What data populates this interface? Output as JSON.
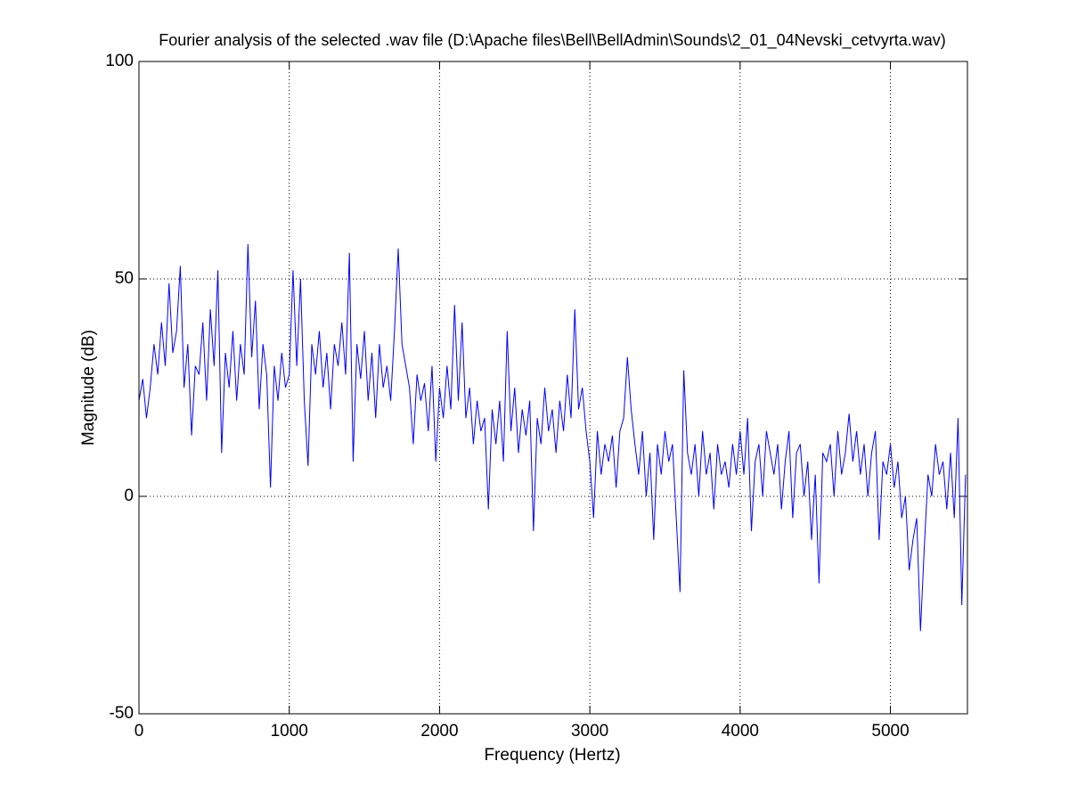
{
  "chart_data": {
    "type": "line",
    "title": "Fourier analysis of the selected .wav file (D:\\Apache files\\Bell\\BellAdmin\\Sounds\\2_01_04Nevski_cetvyrta.wav)",
    "xlabel": "Frequency (Hertz)",
    "ylabel": "Magnitude (dB)",
    "color": "#0000ff",
    "grid": true,
    "xlim": [
      0,
      5512.5
    ],
    "ylim": [
      -50,
      100
    ],
    "xticks": [
      0,
      1000,
      2000,
      3000,
      4000,
      5000
    ],
    "yticks": [
      -50,
      0,
      50,
      100
    ],
    "x": [
      0,
      25,
      50,
      75,
      100,
      125,
      150,
      175,
      200,
      225,
      250,
      275,
      300,
      325,
      350,
      375,
      400,
      425,
      450,
      475,
      500,
      525,
      550,
      575,
      600,
      625,
      650,
      675,
      700,
      725,
      750,
      775,
      800,
      825,
      850,
      875,
      900,
      925,
      950,
      975,
      1000,
      1025,
      1050,
      1075,
      1100,
      1125,
      1150,
      1175,
      1200,
      1225,
      1250,
      1275,
      1300,
      1325,
      1350,
      1375,
      1400,
      1425,
      1450,
      1475,
      1500,
      1525,
      1550,
      1575,
      1600,
      1625,
      1650,
      1675,
      1700,
      1725,
      1750,
      1775,
      1800,
      1825,
      1850,
      1875,
      1900,
      1925,
      1950,
      1975,
      2000,
      2025,
      2050,
      2075,
      2100,
      2125,
      2150,
      2175,
      2200,
      2225,
      2250,
      2275,
      2300,
      2325,
      2350,
      2375,
      2400,
      2425,
      2450,
      2475,
      2500,
      2525,
      2550,
      2575,
      2600,
      2625,
      2650,
      2675,
      2700,
      2725,
      2750,
      2775,
      2800,
      2825,
      2850,
      2875,
      2900,
      2925,
      2950,
      2975,
      3000,
      3025,
      3050,
      3075,
      3100,
      3125,
      3150,
      3175,
      3200,
      3225,
      3250,
      3275,
      3300,
      3325,
      3350,
      3375,
      3400,
      3425,
      3450,
      3475,
      3500,
      3525,
      3550,
      3575,
      3600,
      3625,
      3650,
      3675,
      3700,
      3725,
      3750,
      3775,
      3800,
      3825,
      3850,
      3875,
      3900,
      3925,
      3950,
      3975,
      4000,
      4025,
      4050,
      4075,
      4100,
      4125,
      4150,
      4175,
      4200,
      4225,
      4250,
      4275,
      4300,
      4325,
      4350,
      4375,
      4400,
      4425,
      4450,
      4475,
      4500,
      4525,
      4550,
      4575,
      4600,
      4625,
      4650,
      4675,
      4700,
      4725,
      4750,
      4775,
      4800,
      4825,
      4850,
      4875,
      4900,
      4925,
      4950,
      4975,
      5000,
      5025,
      5050,
      5075,
      5100,
      5125,
      5150,
      5175,
      5200,
      5225,
      5250,
      5275,
      5300,
      5325,
      5350,
      5375,
      5400,
      5425,
      5450,
      5475,
      5500
    ],
    "values": [
      22,
      27,
      18,
      25,
      35,
      28,
      40,
      30,
      49,
      33,
      38,
      53,
      25,
      35,
      14,
      30,
      28,
      40,
      22,
      43,
      30,
      52,
      10,
      33,
      25,
      38,
      22,
      35,
      28,
      58,
      32,
      45,
      20,
      35,
      28,
      2,
      30,
      22,
      33,
      25,
      28,
      52,
      30,
      50,
      22,
      7,
      35,
      28,
      38,
      25,
      33,
      20,
      35,
      30,
      40,
      28,
      56,
      8,
      35,
      27,
      38,
      22,
      33,
      18,
      35,
      25,
      30,
      22,
      38,
      57,
      35,
      30,
      25,
      12,
      28,
      22,
      26,
      15,
      30,
      8,
      25,
      18,
      30,
      20,
      44,
      22,
      40,
      18,
      25,
      12,
      22,
      15,
      18,
      -3,
      20,
      12,
      22,
      8,
      38,
      15,
      25,
      10,
      20,
      14,
      22,
      -8,
      18,
      12,
      25,
      15,
      20,
      10,
      22,
      15,
      28,
      18,
      43,
      20,
      25,
      15,
      8,
      -5,
      15,
      5,
      12,
      8,
      14,
      2,
      15,
      18,
      32,
      20,
      12,
      5,
      15,
      0,
      10,
      -10,
      12,
      5,
      15,
      8,
      12,
      -5,
      -22,
      29,
      10,
      5,
      12,
      0,
      15,
      5,
      10,
      -3,
      12,
      5,
      8,
      2,
      12,
      5,
      15,
      5,
      18,
      -8,
      8,
      12,
      0,
      15,
      10,
      5,
      12,
      -3,
      8,
      15,
      -5,
      10,
      12,
      0,
      8,
      -10,
      5,
      -20,
      10,
      8,
      12,
      0,
      15,
      5,
      10,
      19,
      8,
      15,
      5,
      12,
      0,
      10,
      15,
      -10,
      8,
      5,
      12,
      2,
      8,
      -5,
      0,
      -17,
      -10,
      -5,
      -31,
      -12,
      5,
      0,
      12,
      5,
      8,
      -3,
      10,
      -5,
      18,
      -25,
      5
    ]
  }
}
